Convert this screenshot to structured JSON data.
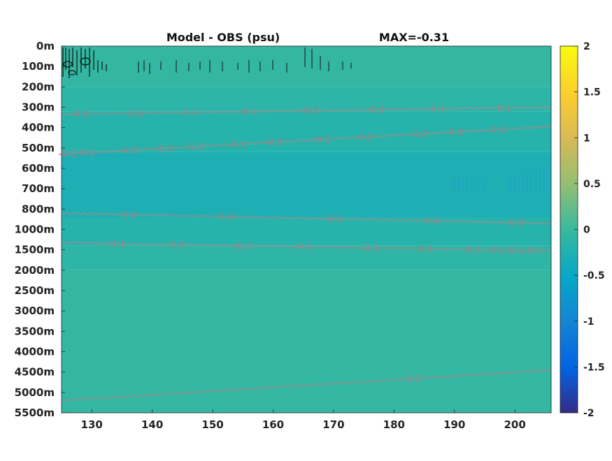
{
  "chart_data": {
    "type": "heatmap",
    "title_left": "Model - OBS (psu)",
    "title_right": "MAX=-0.31",
    "x_ticks": [
      130,
      140,
      150,
      160,
      170,
      180,
      190,
      200
    ],
    "xlim": [
      125,
      206
    ],
    "y_ticks": [
      "0m",
      "100m",
      "200m",
      "300m",
      "400m",
      "500m",
      "600m",
      "700m",
      "800m",
      "1000m",
      "1500m",
      "2000m",
      "2500m",
      "3000m",
      "3500m",
      "4000m",
      "4500m",
      "5000m",
      "5500m"
    ],
    "colorbar": {
      "ticks": [
        2,
        1.5,
        1,
        0.5,
        0,
        -0.5,
        -1,
        -1.5,
        -2
      ],
      "range": [
        -2,
        2
      ]
    },
    "bands": [
      {
        "depth_index": [
          0,
          2.0
        ],
        "value": -0.05
      },
      {
        "depth_index": [
          2.0,
          3.2
        ],
        "value": -0.12
      },
      {
        "depth_index": [
          3.2,
          5.2
        ],
        "value": -0.18
      },
      {
        "depth_index": [
          5.2,
          8.4
        ],
        "value": -0.27
      },
      {
        "depth_index": [
          8.4,
          9.8
        ],
        "value": -0.18
      },
      {
        "depth_index": [
          9.8,
          11.0
        ],
        "value": -0.1
      },
      {
        "depth_index": [
          11.0,
          18.0
        ],
        "value": -0.05
      }
    ],
    "contours": [
      {
        "level": "-0.1",
        "depth_index": [
          3.35,
          3.0
        ],
        "labels_x": [
          128,
          137,
          146,
          156,
          166,
          177,
          187,
          198
        ]
      },
      {
        "level": "-0.2",
        "depth_index": [
          5.3,
          3.95
        ],
        "labels_x": [
          126,
          129,
          136,
          142,
          147,
          154,
          160,
          168,
          175,
          184,
          190,
          197
        ]
      },
      {
        "level": "-0.2",
        "depth_index": [
          8.2,
          8.7
        ],
        "labels_x": [
          136,
          152,
          170,
          186,
          200
        ]
      },
      {
        "level": "-0.1",
        "depth_index": [
          9.65,
          10.05
        ],
        "labels_x": [
          134,
          144,
          155,
          165,
          176,
          185,
          193,
          197,
          200,
          203
        ]
      },
      {
        "level": "-0.1",
        "depth_index": [
          17.4,
          15.9
        ],
        "labels_x": [
          183
        ]
      }
    ]
  }
}
